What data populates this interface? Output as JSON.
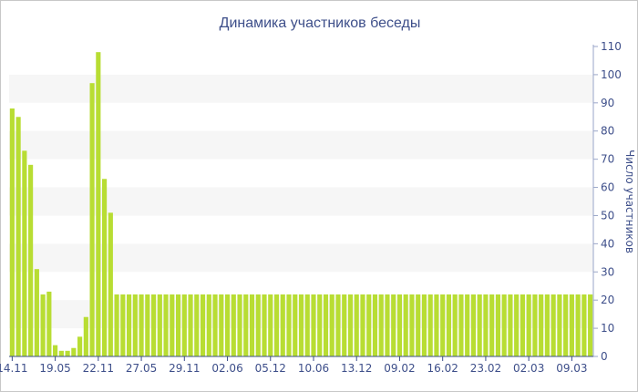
{
  "chart_data": {
    "type": "bar",
    "title": "Динамика участников беседы",
    "xlabel": "",
    "ylabel": "Число участников",
    "ylim": [
      0,
      110
    ],
    "yticks": [
      0,
      10,
      20,
      30,
      40,
      50,
      60,
      70,
      80,
      90,
      100,
      110
    ],
    "y_axis_position": "right",
    "grid": "alternating horizontal bands",
    "bar_color": "#b8dd33",
    "band_color": "#f6f6f6",
    "text_color": "#3e4f8a",
    "xtick_labels": [
      {
        "index": 0,
        "label": "14.11"
      },
      {
        "index": 7,
        "label": "19.05"
      },
      {
        "index": 14,
        "label": "22.11"
      },
      {
        "index": 21,
        "label": "27.05"
      },
      {
        "index": 28,
        "label": "29.11"
      },
      {
        "index": 35,
        "label": "02.06"
      },
      {
        "index": 42,
        "label": "05.12"
      },
      {
        "index": 49,
        "label": "10.06"
      },
      {
        "index": 56,
        "label": "13.12"
      },
      {
        "index": 63,
        "label": "09.02"
      },
      {
        "index": 70,
        "label": "16.02"
      },
      {
        "index": 77,
        "label": "23.02"
      },
      {
        "index": 84,
        "label": "02.03"
      },
      {
        "index": 91,
        "label": "09.03"
      }
    ],
    "values": [
      88,
      85,
      73,
      68,
      31,
      22,
      23,
      4,
      2,
      2,
      3,
      7,
      14,
      97,
      108,
      63,
      51,
      22,
      22,
      22,
      22,
      22,
      22,
      22,
      22,
      22,
      22,
      22,
      22,
      22,
      22,
      22,
      22,
      22,
      22,
      22,
      22,
      22,
      22,
      22,
      22,
      22,
      22,
      22,
      22,
      22,
      22,
      22,
      22,
      22,
      22,
      22,
      22,
      22,
      22,
      22,
      22,
      22,
      22,
      22,
      22,
      22,
      22,
      22,
      22,
      22,
      22,
      22,
      22,
      22,
      22,
      22,
      22,
      22,
      22,
      22,
      22,
      22,
      22,
      22,
      22,
      22,
      22,
      22,
      22,
      22,
      22,
      22,
      22,
      22,
      22,
      22,
      22,
      22,
      22
    ]
  }
}
